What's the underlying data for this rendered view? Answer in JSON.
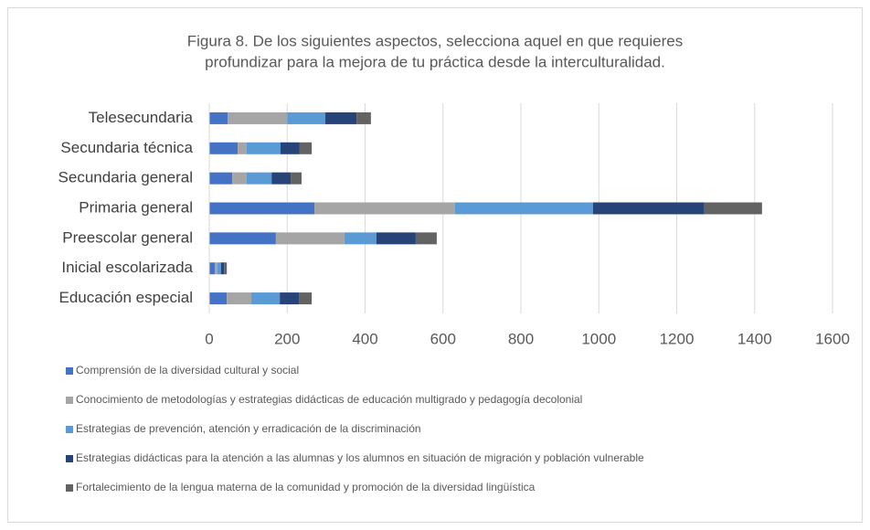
{
  "chart_data": {
    "type": "bar",
    "orientation": "horizontal",
    "stacked": true,
    "title": [
      "Figura 8. De los siguientes aspectos, selecciona aquel en que requieres",
      "profundizar para la mejora de tu práctica desde la interculturalidad."
    ],
    "categories": [
      "Telesecundaria",
      "Secundaria técnica",
      "Secundaria general",
      "Primaria general",
      "Preescolar general",
      "Inicial escolarizada",
      "Educación especial"
    ],
    "series": [
      {
        "name": "Comprensión de la diversidad cultural y social",
        "color": "#4472c4",
        "values": [
          47,
          73,
          59,
          270,
          171,
          14,
          45
        ]
      },
      {
        "name": "Conocimiento de metodologías y estrategias didácticas de educación multigrado y pedagogía decolonial",
        "color": "#a5a5a5",
        "values": [
          153,
          23,
          37,
          361,
          176,
          7,
          63
        ]
      },
      {
        "name": "Estrategias de prevención, atención y erradicación de la discriminación",
        "color": "#5b9bd5",
        "values": [
          98,
          87,
          64,
          354,
          82,
          9,
          73
        ]
      },
      {
        "name": "Estrategias didácticas para la atención a las alumnas y los alumnos en situación de migración y población vulnerable",
        "color": "#264478",
        "values": [
          80,
          49,
          49,
          286,
          101,
          8,
          49
        ]
      },
      {
        "name": "Fortalecimiento de la lengua materna de la comunidad y promoción de la diversidad lingüística",
        "color": "#636363",
        "values": [
          37,
          31,
          28,
          148,
          54,
          7,
          33
        ]
      }
    ],
    "xlim": [
      0,
      1600
    ],
    "xticks": [
      0,
      200,
      400,
      600,
      800,
      1000,
      1200,
      1400,
      1600
    ],
    "grid": true,
    "legend": "bottom"
  }
}
